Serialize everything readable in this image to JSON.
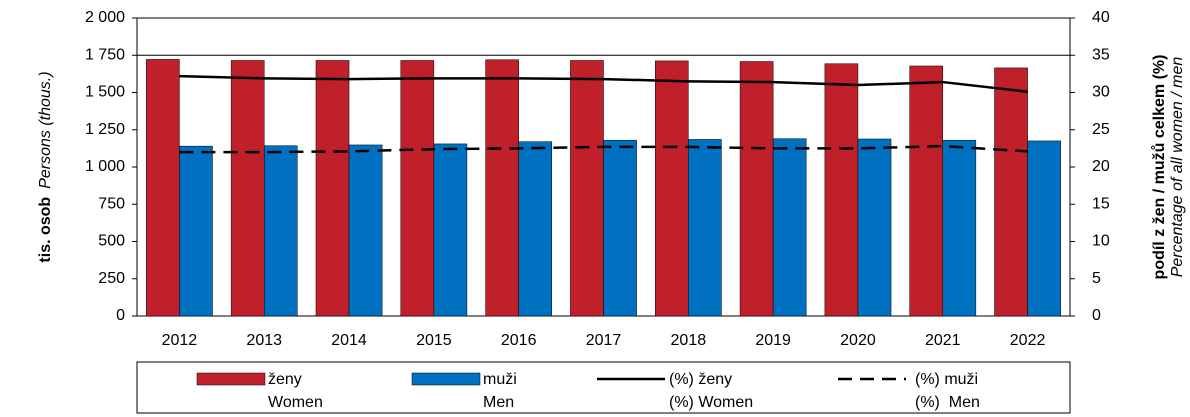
{
  "chart_data": {
    "type": "bar_line",
    "y_label": "tis. osob",
    "y_label_en": "Persons (thous.)",
    "y2_label": "podíl z žen / mužů celkem (%)",
    "y2_label_en": "Percentage of all women / men",
    "categories": [
      "2012",
      "2013",
      "2014",
      "2015",
      "2016",
      "2017",
      "2018",
      "2019",
      "2020",
      "2021",
      "2022"
    ],
    "series": [
      {
        "name": "ženy",
        "name_en": "Women",
        "kind": "bar",
        "color": "#c0202a",
        "values": [
          1722,
          1715,
          1715,
          1715,
          1720,
          1715,
          1712,
          1708,
          1693,
          1678,
          1665
        ]
      },
      {
        "name": "muži",
        "name_en": "Men",
        "kind": "bar",
        "color": "#0070c0",
        "values": [
          1140,
          1143,
          1148,
          1155,
          1170,
          1180,
          1185,
          1190,
          1188,
          1180,
          1175
        ]
      },
      {
        "name": "(%) ženy",
        "name_en": "(%) Women",
        "kind": "line",
        "dash": false,
        "axis": "y2",
        "color": "#000000",
        "values": [
          32.2,
          31.9,
          31.8,
          31.9,
          31.9,
          31.8,
          31.5,
          31.4,
          31.0,
          31.4,
          30.1
        ]
      },
      {
        "name": "(%) muži",
        "name_en": "(%)  Men",
        "kind": "line",
        "dash": true,
        "axis": "y2",
        "color": "#000000",
        "values": [
          22.0,
          22.0,
          22.1,
          22.4,
          22.5,
          22.7,
          22.7,
          22.5,
          22.5,
          22.8,
          22.1
        ]
      }
    ],
    "ylim": [
      0,
      2000
    ],
    "yticks": [
      0,
      250,
      500,
      750,
      {
        "value": 1000,
        "label": "1 000"
      },
      {
        "value": 1250,
        "label": "1 250"
      },
      {
        "value": 1500,
        "label": "1 500"
      },
      {
        "value": 1750,
        "label": "1 750"
      },
      {
        "value": 2000,
        "label": "2 000"
      }
    ],
    "grid_lines": [
      1750
    ],
    "y2lim": [
      0,
      40
    ],
    "y2ticks": [
      0,
      5,
      10,
      15,
      20,
      25,
      30,
      35,
      40
    ],
    "legend": "bottom"
  }
}
